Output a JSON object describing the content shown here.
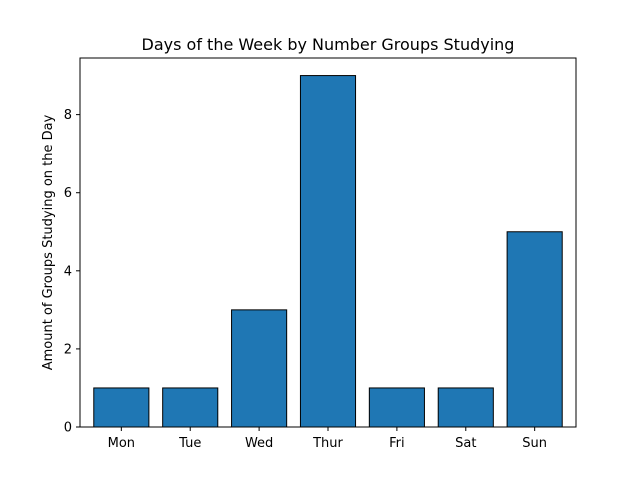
{
  "chart_data": {
    "type": "bar",
    "title": "Days of the Week by Number Groups Studying",
    "xlabel": "",
    "ylabel": "Amount of Groups Studying on the Day",
    "categories": [
      "Mon",
      "Tue",
      "Wed",
      "Thur",
      "Fri",
      "Sat",
      "Sun"
    ],
    "values": [
      1,
      1,
      3,
      9,
      1,
      1,
      5
    ],
    "ylim": [
      0,
      9.45
    ],
    "yticks": [
      0,
      2,
      4,
      6,
      8
    ],
    "grid": false,
    "bar_color": "#1f77b4",
    "bar_edge_color": "#000000"
  }
}
